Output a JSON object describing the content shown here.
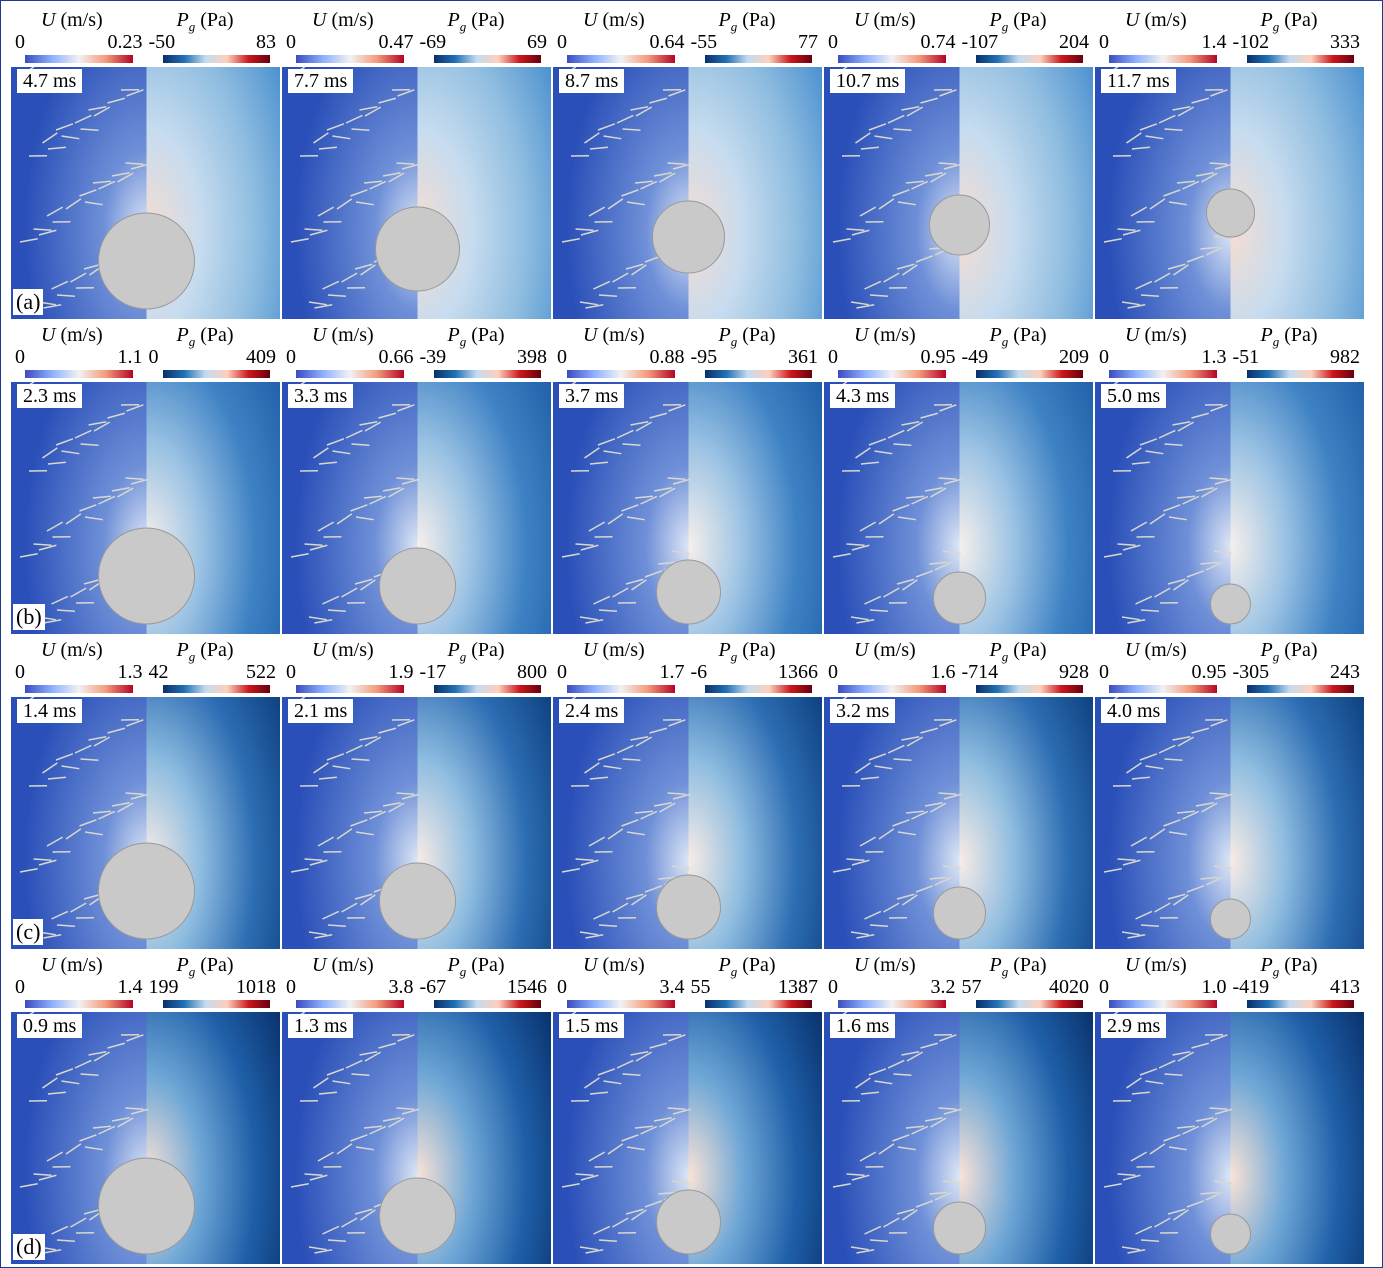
{
  "labels": {
    "u_symbol": "U",
    "u_unit": "(m/s)",
    "p_symbol": "P",
    "p_subscript": "g",
    "p_unit": "(Pa)"
  },
  "rows": [
    {
      "label": "(a)",
      "panels": [
        {
          "time": "4.7 ms",
          "u_min": "0",
          "u_max": "0.23",
          "p_min": "-50",
          "p_max": "83"
        },
        {
          "time": "7.7 ms",
          "u_min": "0",
          "u_max": "0.47",
          "p_min": "-69",
          "p_max": "69"
        },
        {
          "time": "8.7 ms",
          "u_min": "0",
          "u_max": "0.64",
          "p_min": "-55",
          "p_max": "77"
        },
        {
          "time": "10.7 ms",
          "u_min": "0",
          "u_max": "0.74",
          "p_min": "-107",
          "p_max": "204"
        },
        {
          "time": "11.7 ms",
          "u_min": "0",
          "u_max": "1.4",
          "p_min": "-102",
          "p_max": "333"
        }
      ]
    },
    {
      "label": "(b)",
      "panels": [
        {
          "time": "2.3 ms",
          "u_min": "0",
          "u_max": "1.1",
          "p_min": "0",
          "p_max": "409"
        },
        {
          "time": "3.3 ms",
          "u_min": "0",
          "u_max": "0.66",
          "p_min": "-39",
          "p_max": "398"
        },
        {
          "time": "3.7 ms",
          "u_min": "0",
          "u_max": "0.88",
          "p_min": "-95",
          "p_max": "361"
        },
        {
          "time": "4.3 ms",
          "u_min": "0",
          "u_max": "0.95",
          "p_min": "-49",
          "p_max": "209"
        },
        {
          "time": "5.0 ms",
          "u_min": "0",
          "u_max": "1.3",
          "p_min": "-51",
          "p_max": "982"
        }
      ]
    },
    {
      "label": "(c)",
      "panels": [
        {
          "time": "1.4 ms",
          "u_min": "0",
          "u_max": "1.3",
          "p_min": "42",
          "p_max": "522"
        },
        {
          "time": "2.1 ms",
          "u_min": "0",
          "u_max": "1.9",
          "p_min": "-17",
          "p_max": "800"
        },
        {
          "time": "2.4 ms",
          "u_min": "0",
          "u_max": "1.7",
          "p_min": "-6",
          "p_max": "1366"
        },
        {
          "time": "3.2 ms",
          "u_min": "0",
          "u_max": "1.6",
          "p_min": "-714",
          "p_max": "928"
        },
        {
          "time": "4.0 ms",
          "u_min": "0",
          "u_max": "0.95",
          "p_min": "-305",
          "p_max": "243"
        }
      ]
    },
    {
      "label": "(d)",
      "panels": [
        {
          "time": "0.9 ms",
          "u_min": "0",
          "u_max": "1.4",
          "p_min": "199",
          "p_max": "1018"
        },
        {
          "time": "1.3 ms",
          "u_min": "0",
          "u_max": "3.8",
          "p_min": "-67",
          "p_max": "1546"
        },
        {
          "time": "1.5 ms",
          "u_min": "0",
          "u_max": "3.4",
          "p_min": "55",
          "p_max": "1387"
        },
        {
          "time": "1.6 ms",
          "u_min": "0",
          "u_max": "3.2",
          "p_min": "57",
          "p_max": "4020"
        },
        {
          "time": "2.9 ms",
          "u_min": "0",
          "u_max": "1.0",
          "p_min": "-419",
          "p_max": "413"
        }
      ]
    }
  ]
}
